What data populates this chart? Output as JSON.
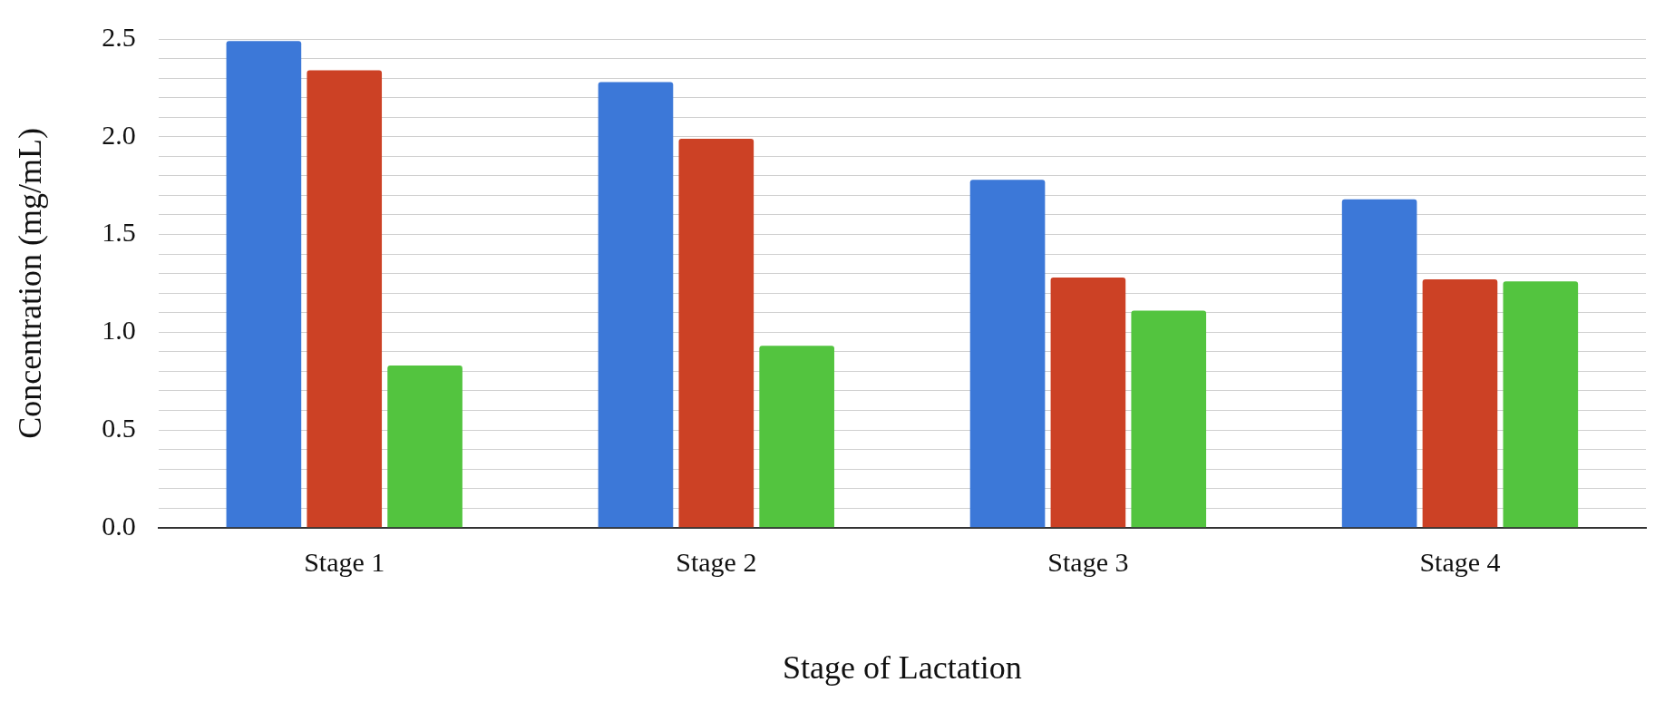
{
  "chart_data": {
    "type": "bar",
    "xlabel": "Stage of Lactation",
    "ylabel": "Concentration (mg/mL)",
    "categories": [
      "Stage 1",
      "Stage 2",
      "Stage 3",
      "Stage 4"
    ],
    "series": [
      {
        "color": "#3c78d8",
        "values": [
          2.49,
          2.28,
          1.78,
          1.68
        ]
      },
      {
        "color": "#cc4125",
        "values": [
          2.34,
          1.99,
          1.28,
          1.27
        ]
      },
      {
        "color": "#53c43f",
        "values": [
          0.83,
          0.93,
          1.11,
          1.26
        ]
      }
    ],
    "ylim": [
      0,
      2.5
    ],
    "yticks": [
      {
        "value": 0,
        "label": "0.0"
      },
      {
        "value": 0.1,
        "label": null
      },
      {
        "value": 0.2,
        "label": null
      },
      {
        "value": 0.3,
        "label": null
      },
      {
        "value": 0.4,
        "label": null
      },
      {
        "value": 0.5,
        "label": "0.5"
      },
      {
        "value": 0.6,
        "label": null
      },
      {
        "value": 0.7,
        "label": null
      },
      {
        "value": 0.8,
        "label": null
      },
      {
        "value": 0.9,
        "label": null
      },
      {
        "value": 1,
        "label": "1.0"
      },
      {
        "value": 1.1,
        "label": null
      },
      {
        "value": 1.2,
        "label": null
      },
      {
        "value": 1.3,
        "label": null
      },
      {
        "value": 1.4,
        "label": null
      },
      {
        "value": 1.5,
        "label": "1.5"
      },
      {
        "value": 1.6,
        "label": null
      },
      {
        "value": 1.7,
        "label": null
      },
      {
        "value": 1.8,
        "label": null
      },
      {
        "value": 1.9,
        "label": null
      },
      {
        "value": 2,
        "label": "2.0"
      },
      {
        "value": 2.1,
        "label": null
      },
      {
        "value": 2.2,
        "label": null
      },
      {
        "value": 2.3,
        "label": null
      },
      {
        "value": 2.4,
        "label": null
      },
      {
        "value": 2.5,
        "label": "2.5"
      }
    ],
    "grid": "y",
    "legend": false
  }
}
